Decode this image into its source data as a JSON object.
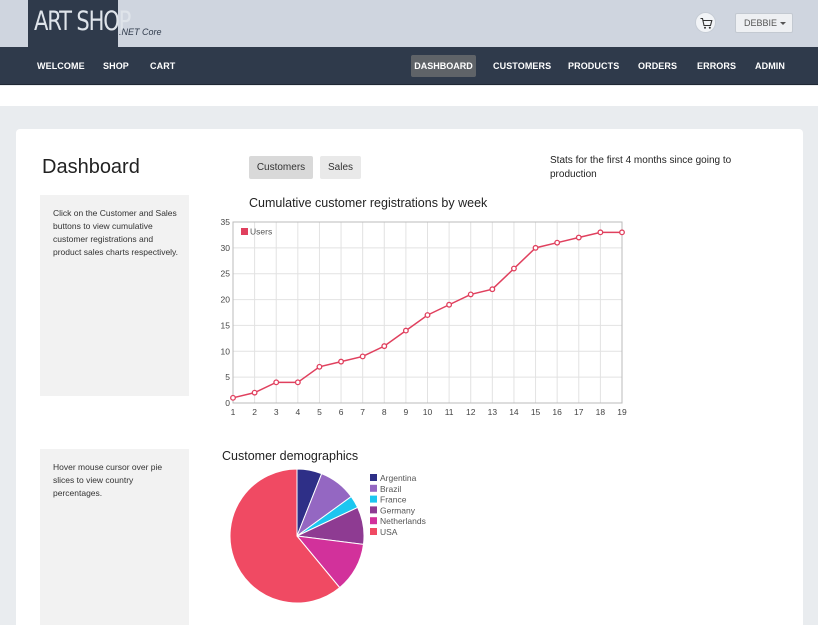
{
  "header": {
    "logo_text": "ART SHOP",
    "logo_sub": ".NET Core",
    "cart_icon": "cart-icon",
    "user_label": "DEBBIE"
  },
  "nav": {
    "left": [
      "WELCOME",
      "SHOP",
      "CART"
    ],
    "right": [
      "DASHBOARD",
      "CUSTOMERS",
      "PRODUCTS",
      "ORDERS",
      "ERRORS",
      "ADMIN"
    ],
    "active": "DASHBOARD"
  },
  "main": {
    "title": "Dashboard",
    "tabs": [
      "Customers",
      "Sales"
    ],
    "active_tab": "Customers",
    "stats_text": "Stats for the first 4 months since going to production",
    "line_info": "Click on the Customer and Sales buttons to view cumulative customer registrations and product sales charts respectively.",
    "pie_info": "Hover mouse cursor over pie slices to view country percentages."
  },
  "colors": {
    "nav_bg": "#2f3a4b",
    "header_bg": "#cfd5df",
    "line": "#e0405e",
    "pie": [
      "#2e2f87",
      "#9467c2",
      "#1cc6f0",
      "#8e3b92",
      "#d2319b",
      "#f04a63"
    ]
  },
  "chart_data": [
    {
      "type": "line",
      "title": "Cumulative customer registrations by week",
      "x": [
        1,
        2,
        3,
        4,
        5,
        6,
        7,
        8,
        9,
        10,
        11,
        12,
        13,
        14,
        15,
        16,
        17,
        18,
        19
      ],
      "series": [
        {
          "name": "Users",
          "values": [
            1,
            2,
            4,
            4,
            7,
            8,
            9,
            11,
            14,
            17,
            19,
            21,
            22,
            26,
            30,
            31,
            32,
            33,
            33
          ]
        }
      ],
      "ylim": [
        0,
        35
      ],
      "yticks": [
        0,
        5,
        10,
        15,
        20,
        25,
        30,
        35
      ],
      "grid": true,
      "legend": "top-left"
    },
    {
      "type": "pie",
      "title": "Customer demographics",
      "categories": [
        "Argentina",
        "Brazil",
        "France",
        "Germany",
        "Netherlands",
        "USA"
      ],
      "values": [
        6,
        9,
        3,
        9,
        12,
        61
      ],
      "legend": "right"
    }
  ]
}
